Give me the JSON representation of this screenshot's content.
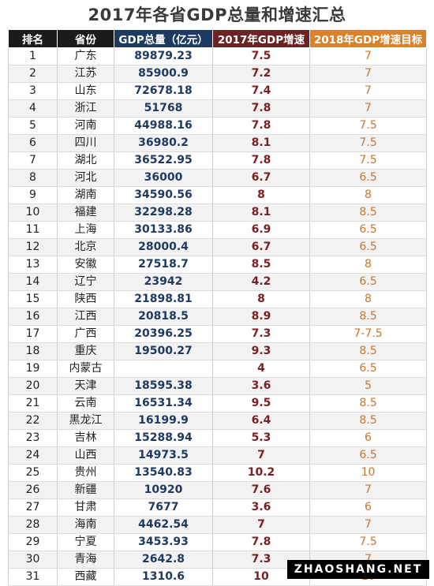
{
  "title": "2017年各省GDP总量和增速汇总",
  "headers": {
    "rank": "排名",
    "province": "省份",
    "gdp": "GDP总量（亿元）",
    "growth_2017": "2017年GDP增速",
    "target_2018": "2018年GDP增速目标"
  },
  "rows": [
    {
      "rank": "1",
      "province": "广东",
      "gdp": "89879.23",
      "growth_2017": "7.5",
      "target_2018": "7"
    },
    {
      "rank": "2",
      "province": "江苏",
      "gdp": "85900.9",
      "growth_2017": "7.2",
      "target_2018": "7"
    },
    {
      "rank": "3",
      "province": "山东",
      "gdp": "72678.18",
      "growth_2017": "7.4",
      "target_2018": "7"
    },
    {
      "rank": "4",
      "province": "浙江",
      "gdp": "51768",
      "growth_2017": "7.8",
      "target_2018": "7"
    },
    {
      "rank": "5",
      "province": "河南",
      "gdp": "44988.16",
      "growth_2017": "7.8",
      "target_2018": "7.5"
    },
    {
      "rank": "6",
      "province": "四川",
      "gdp": "36980.2",
      "growth_2017": "8.1",
      "target_2018": "7.5"
    },
    {
      "rank": "7",
      "province": "湖北",
      "gdp": "36522.95",
      "growth_2017": "7.8",
      "target_2018": "7.5"
    },
    {
      "rank": "8",
      "province": "河北",
      "gdp": "36000",
      "growth_2017": "6.7",
      "target_2018": "6.5"
    },
    {
      "rank": "9",
      "province": "湖南",
      "gdp": "34590.56",
      "growth_2017": "8",
      "target_2018": "8"
    },
    {
      "rank": "10",
      "province": "福建",
      "gdp": "32298.28",
      "growth_2017": "8.1",
      "target_2018": "8.5"
    },
    {
      "rank": "11",
      "province": "上海",
      "gdp": "30133.86",
      "growth_2017": "6.9",
      "target_2018": "6.5"
    },
    {
      "rank": "12",
      "province": "北京",
      "gdp": "28000.4",
      "growth_2017": "6.7",
      "target_2018": "6.5"
    },
    {
      "rank": "13",
      "province": "安徽",
      "gdp": "27518.7",
      "growth_2017": "8.5",
      "target_2018": "8"
    },
    {
      "rank": "14",
      "province": "辽宁",
      "gdp": "23942",
      "growth_2017": "4.2",
      "target_2018": "6.5"
    },
    {
      "rank": "15",
      "province": "陕西",
      "gdp": "21898.81",
      "growth_2017": "8",
      "target_2018": "8"
    },
    {
      "rank": "16",
      "province": "江西",
      "gdp": "20818.5",
      "growth_2017": "8.9",
      "target_2018": "8.5"
    },
    {
      "rank": "17",
      "province": "广西",
      "gdp": "20396.25",
      "growth_2017": "7.3",
      "target_2018": "7-7.5"
    },
    {
      "rank": "18",
      "province": "重庆",
      "gdp": "19500.27",
      "growth_2017": "9.3",
      "target_2018": "8.5"
    },
    {
      "rank": "19",
      "province": "内蒙古",
      "gdp": "",
      "growth_2017": "4",
      "target_2018": "6.5"
    },
    {
      "rank": "20",
      "province": "天津",
      "gdp": "18595.38",
      "growth_2017": "3.6",
      "target_2018": "5"
    },
    {
      "rank": "21",
      "province": "云南",
      "gdp": "16531.34",
      "growth_2017": "9.5",
      "target_2018": "8.5"
    },
    {
      "rank": "22",
      "province": "黑龙江",
      "gdp": "16199.9",
      "growth_2017": "6.4",
      "target_2018": "8.5"
    },
    {
      "rank": "23",
      "province": "吉林",
      "gdp": "15288.94",
      "growth_2017": "5.3",
      "target_2018": "6"
    },
    {
      "rank": "24",
      "province": "山西",
      "gdp": "14973.5",
      "growth_2017": "7",
      "target_2018": "6.5"
    },
    {
      "rank": "25",
      "province": "贵州",
      "gdp": "13540.83",
      "growth_2017": "10.2",
      "target_2018": "10"
    },
    {
      "rank": "26",
      "province": "新疆",
      "gdp": "10920",
      "growth_2017": "7.6",
      "target_2018": "7"
    },
    {
      "rank": "27",
      "province": "甘肃",
      "gdp": "7677",
      "growth_2017": "3.6",
      "target_2018": "6"
    },
    {
      "rank": "28",
      "province": "海南",
      "gdp": "4462.54",
      "growth_2017": "7",
      "target_2018": "7"
    },
    {
      "rank": "29",
      "province": "宁夏",
      "gdp": "3453.93",
      "growth_2017": "7.8",
      "target_2018": "7.5"
    },
    {
      "rank": "30",
      "province": "青海",
      "gdp": "2642.8",
      "growth_2017": "7.3",
      "target_2018": "7"
    },
    {
      "rank": "31",
      "province": "西藏",
      "gdp": "1310.6",
      "growth_2017": "10",
      "target_2018": "10"
    }
  ],
  "watermark": "ZHAOSHANG.NET",
  "colors": {
    "header_dark": "#1b1b1b",
    "header_gdp": "#1f3a60",
    "header_growth": "#6b2323",
    "header_target": "#d9822b",
    "text_gdp": "#1f3a60",
    "text_growth": "#7a1f1f",
    "text_target": "#c8762e"
  }
}
